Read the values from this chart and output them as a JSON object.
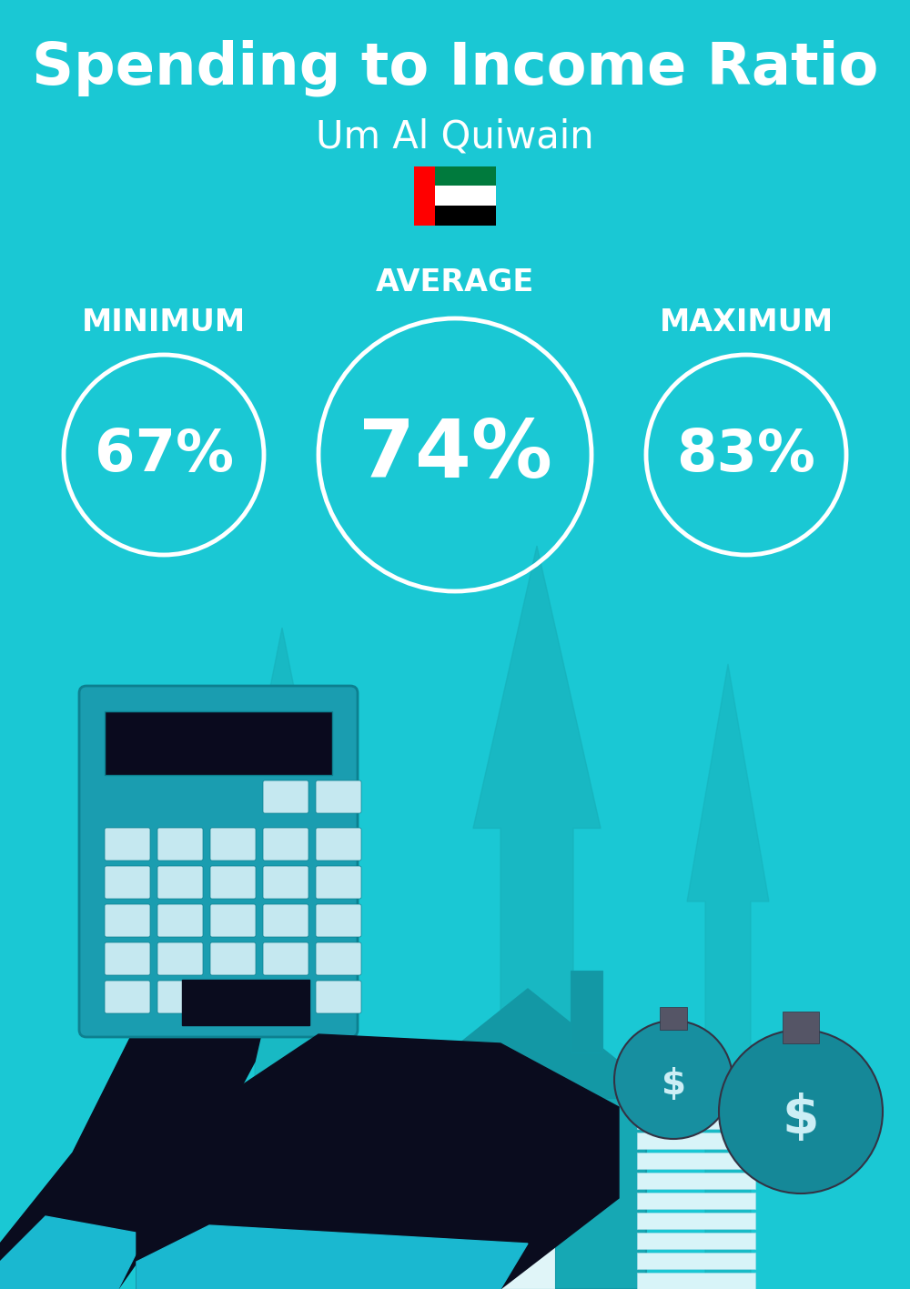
{
  "title": "Spending to Income Ratio",
  "subtitle": "Um Al Quiwain",
  "bg_color": "#1ac8d4",
  "text_color": "#ffffff",
  "min_label": "MINIMUM",
  "avg_label": "AVERAGE",
  "max_label": "MAXIMUM",
  "min_value": "67%",
  "avg_value": "74%",
  "max_value": "83%",
  "circle_edge_color": "#ffffff",
  "title_fontsize": 46,
  "subtitle_fontsize": 30,
  "label_fontsize": 24,
  "min_value_fontsize": 46,
  "avg_value_fontsize": 64,
  "max_value_fontsize": 46,
  "fig_width": 10.0,
  "fig_height": 14.17,
  "dpi": 100
}
